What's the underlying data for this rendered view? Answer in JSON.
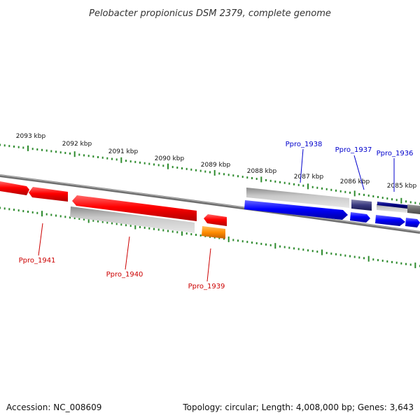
{
  "title": "Pelobacter propionicus DSM 2379, complete genome",
  "footer": {
    "accession": "Accession: NC_008609",
    "topology": "Topology: circular; Length: 4,008,000 bp; Genes: 3,643"
  },
  "colors": {
    "background": "#ffffff",
    "backbone": "#7a7a7a",
    "tick": "#2e8b2e",
    "reverse_strand_gene": "#ff0000",
    "reverse_strand_label": "#cc0000",
    "forward_strand_gene": "#0000ff",
    "forward_strand_label": "#0000cc",
    "rna_gene": "#ff8c00",
    "dark_gene": "#2a2a7a",
    "gray_gene": "#b8b8b8"
  },
  "scale": {
    "tick_labels": [
      "2093 kbp",
      "2092 kbp",
      "2091 kbp",
      "2090 kbp",
      "2089 kbp",
      "2088 kbp",
      "2087 kbp",
      "2086 kbp",
      "2085 kbp"
    ]
  },
  "genes": {
    "forward_labels": [
      "Ppro_1938",
      "Ppro_1937",
      "Ppro_1936"
    ],
    "reverse_labels": [
      "Ppro_1941",
      "Ppro_1940",
      "Ppro_1939"
    ]
  }
}
